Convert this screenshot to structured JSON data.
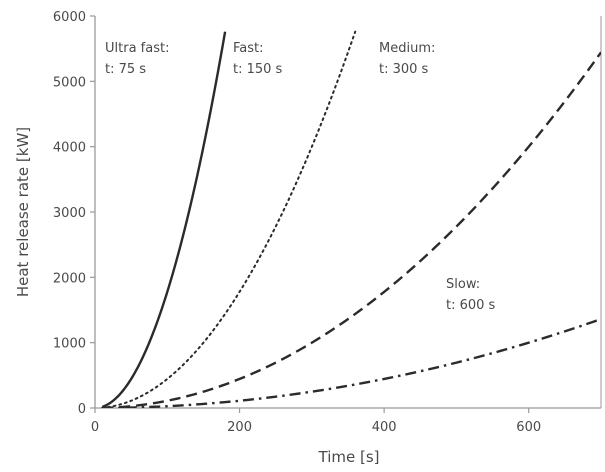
{
  "chart_data": {
    "type": "line",
    "title": "",
    "xlabel": "Time [s]",
    "ylabel": "Heat release rate [kW]",
    "xlim": [
      0,
      700
    ],
    "ylim": [
      0,
      6000
    ],
    "xticks": [
      0,
      200,
      400,
      600
    ],
    "yticks": [
      0,
      1000,
      2000,
      3000,
      4000,
      5000,
      6000
    ],
    "grid": false,
    "legend": "none",
    "series": [
      {
        "style": "solid",
        "x": [
          10,
          25,
          50,
          75,
          100,
          125,
          150,
          175,
          180
        ],
        "y": [
          18,
          111,
          444,
          1000,
          1778,
          2778,
          4000,
          5444,
          5760
        ]
      },
      {
        "style": "dotted",
        "x": [
          10,
          50,
          100,
          150,
          200,
          250,
          300,
          350,
          360
        ],
        "y": [
          4,
          111,
          444,
          1000,
          1778,
          2778,
          4000,
          5444,
          5760
        ]
      },
      {
        "style": "dashed",
        "x": [
          10,
          100,
          200,
          300,
          400,
          500,
          600,
          700
        ],
        "y": [
          1,
          111,
          444,
          1000,
          1778,
          2778,
          4000,
          5444
        ]
      },
      {
        "style": "dash-dot",
        "x": [
          10,
          100,
          200,
          300,
          400,
          500,
          600,
          700
        ],
        "y": [
          0,
          28,
          111,
          250,
          444,
          694,
          1000,
          1361
        ]
      }
    ],
    "annotations": [
      {
        "line1": "Ultra fast:",
        "line2": "t: 75 s"
      },
      {
        "line1": "Fast:",
        "line2": "t: 150 s"
      },
      {
        "line1": "Medium:",
        "line2": "t: 300 s"
      },
      {
        "line1": "Slow:",
        "line2": "t: 600 s"
      }
    ],
    "colors": {
      "line": "#2b2b2b",
      "axis": "#9a9a9a",
      "text": "#4a4a4a"
    }
  }
}
